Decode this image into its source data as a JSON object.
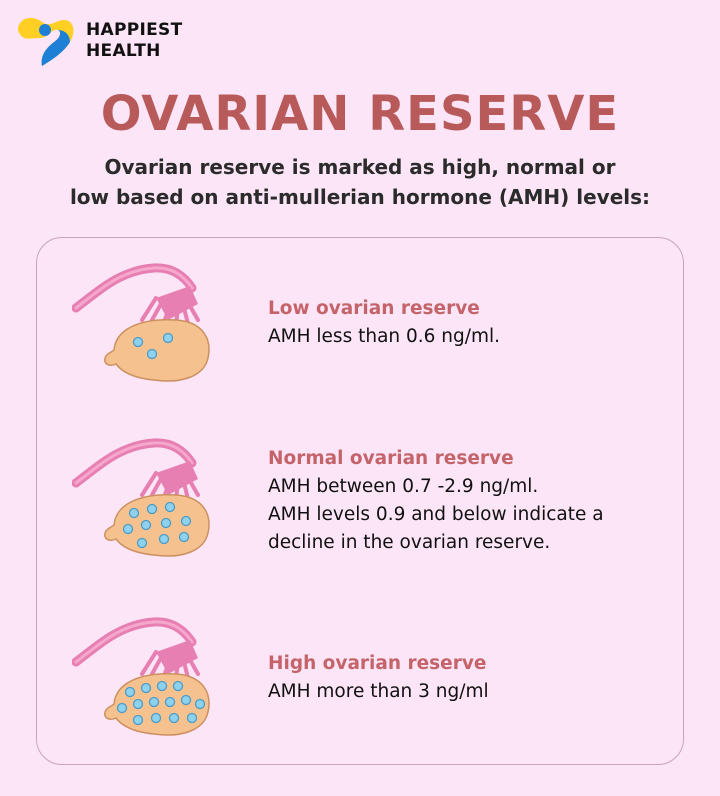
{
  "brand": {
    "line1": "HAPPIEST",
    "line2": "HEALTH"
  },
  "title": "OVARIAN RESERVE",
  "subtitle": {
    "line1": "Ovarian reserve is marked as high, normal or",
    "line2": "low based on anti-mullerian hormone (AMH) levels:"
  },
  "items": [
    {
      "heading": "Low ovarian reserve",
      "body": [
        "AMH less than 0.6 ng/ml."
      ],
      "follicle_count": 3
    },
    {
      "heading": "Normal ovarian reserve",
      "body": [
        "AMH between 0.7 -2.9 ng/ml.",
        "AMH levels 0.9 and below indicate a",
        "decline in the ovarian reserve."
      ],
      "follicle_count": 10
    },
    {
      "heading": "High ovarian reserve",
      "body": [
        "AMH more than 3 ng/ml"
      ],
      "follicle_count": 14
    }
  ],
  "colors": {
    "background": "#fbe5f6",
    "title": "#b85a5a",
    "heading": "#c4646a",
    "ovary": "#f5c28f",
    "tube": "#e77fb3",
    "follicle": "#8fd2ee"
  }
}
